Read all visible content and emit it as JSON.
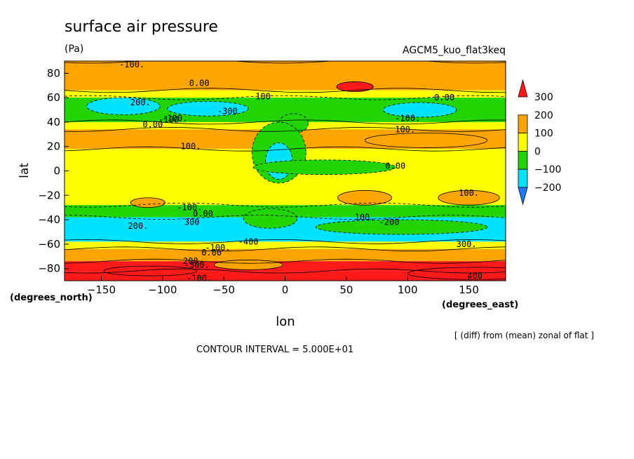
{
  "chart_data": {
    "type": "heatmap",
    "title": "surface air pressure",
    "units": "(Pa)",
    "experiment": "AGCM5_kuo_flat3keq",
    "xlabel": "lon",
    "ylabel": "lat",
    "x_unit_label": "(degrees_east)",
    "y_unit_label": "(degrees_north)",
    "xlim": [
      -180,
      180
    ],
    "ylim": [
      -90,
      90
    ],
    "x_ticks": [
      -150,
      -100,
      -50,
      0,
      50,
      100,
      150
    ],
    "y_ticks": [
      -80,
      -60,
      -40,
      -20,
      0,
      20,
      40,
      60,
      80
    ],
    "diff_note": "[ (diff) from (mean) zonal of flat ]",
    "contour_interval": "CONTOUR INTERVAL = 5.000E+01",
    "colorbar": {
      "labels": [
        "300",
        "200",
        "100",
        "0",
        "−100",
        "−200"
      ],
      "levels": [
        -300,
        -200,
        -100,
        0,
        100,
        200,
        300
      ],
      "colors": [
        "#1f7cff",
        "#00e3ff",
        "#22d400",
        "#ffff00",
        "#ffa500",
        "#ff1a1a"
      ]
    },
    "contour_labels": [
      "-100.",
      "0.00",
      "200.",
      "-300",
      "-100.",
      "-100",
      "0.00",
      "100",
      "0.00",
      "-100.",
      "100.",
      "100.",
      "0.00",
      "100.",
      "-100.",
      "0.00",
      "200.",
      "300",
      "-400",
      "300.",
      "200.",
      "-300.",
      "-100.",
      "0.00",
      "-100.",
      "100.",
      "-200",
      "400"
    ],
    "bands": [
      {
        "lat": [
          66,
          90
        ],
        "value": 100
      },
      {
        "lat": [
          60,
          66
        ],
        "value": 0
      },
      {
        "lat": [
          40,
          60
        ],
        "value": -100
      },
      {
        "lat": [
          34,
          40
        ],
        "value": 0
      },
      {
        "lat": [
          18,
          34
        ],
        "value": 100
      },
      {
        "lat": [
          -28,
          18
        ],
        "value": 0
      },
      {
        "lat": [
          -38,
          -28
        ],
        "value": -50
      },
      {
        "lat": [
          -58,
          -38
        ],
        "value": -200
      },
      {
        "lat": [
          -64,
          -58
        ],
        "value": 0
      },
      {
        "lat": [
          -74,
          -64
        ],
        "value": 100
      },
      {
        "lat": [
          -82,
          -74
        ],
        "value": 200
      },
      {
        "lat": [
          -90,
          -82
        ],
        "value": 300
      }
    ],
    "features": [
      {
        "lon": 57,
        "lat": 69,
        "rx": 15,
        "ry": 4,
        "value": 200
      },
      {
        "lon": -132,
        "lat": 53,
        "rx": 30,
        "ry": 7,
        "value": -200
      },
      {
        "lon": -63,
        "lat": 51,
        "rx": 33,
        "ry": 6,
        "value": -200
      },
      {
        "lon": 110,
        "lat": 50,
        "rx": 30,
        "ry": 6,
        "value": -200
      },
      {
        "lon": 7,
        "lat": 39,
        "rx": 12,
        "ry": 8,
        "value": -100
      },
      {
        "lon": -5,
        "lat": 15,
        "rx": 22,
        "ry": 25,
        "value": -100
      },
      {
        "lon": -5,
        "lat": 8,
        "rx": 11,
        "ry": 15,
        "value": -200
      },
      {
        "lon": 32,
        "lat": 3,
        "rx": 58,
        "ry": 6,
        "value": -100
      },
      {
        "lon": 115,
        "lat": 25,
        "rx": 50,
        "ry": 6,
        "value": 100
      },
      {
        "lon": 65,
        "lat": -22,
        "rx": 22,
        "ry": 6,
        "value": 100
      },
      {
        "lon": 150,
        "lat": -22,
        "rx": 25,
        "ry": 6,
        "value": 100
      },
      {
        "lon": -112,
        "lat": -26,
        "rx": 14,
        "ry": 4,
        "value": 100
      },
      {
        "lon": -12,
        "lat": -39,
        "rx": 22,
        "ry": 8,
        "value": -100
      },
      {
        "lon": 95,
        "lat": -46,
        "rx": 70,
        "ry": 6,
        "value": -100
      },
      {
        "lon": -30,
        "lat": -77,
        "rx": 28,
        "ry": 4,
        "value": 100
      },
      {
        "lon": -110,
        "lat": -82,
        "rx": 38,
        "ry": 4,
        "value": 200
      },
      {
        "lon": 155,
        "lat": -84,
        "rx": 55,
        "ry": 5,
        "value": 400
      }
    ]
  }
}
